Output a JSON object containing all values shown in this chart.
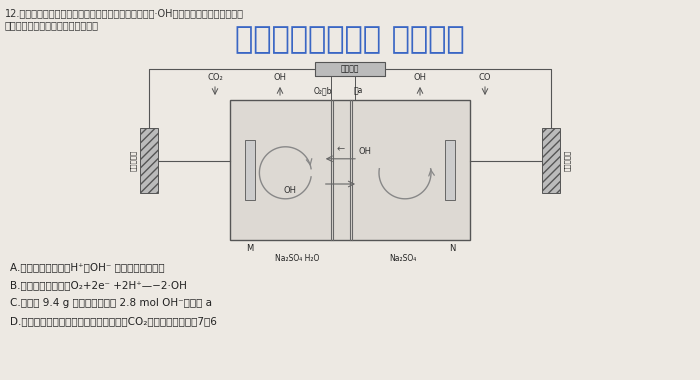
{
  "bg_color": "#ede9e3",
  "question_text_line1": "12.在直流电源作用下，利用双极膜电解池产生自由基（·OH）处理含苯蔽水和含甲醉废",
  "question_text_line2": "水的原理如图。下列说法不正确的是",
  "watermark_text": "微信公众号关注： 趋找答案",
  "option_A": "A.双极膜将水解离为H⁺和OH⁻ 的过程是物理变化",
  "option_B": "B.阴极电极反应式为O₂+2e⁻ +2H⁺—−2·OH",
  "option_C": "C.每处理 9.4 g 苯蔽，理论上有 2.8 mol OH⁻透过膜 a",
  "option_D": "D.通电一段时间后，苯蔽和甲醉转化生成CO₂的物质的量之比为7：6",
  "dc_label": "直流电源",
  "left_top1": "CO₂",
  "left_top2": "OH",
  "right_top1": "OH",
  "right_top2": "CO",
  "o2_memb": "O₂膜b",
  "memb_a": "膜a",
  "left_node": "M",
  "right_node": "N",
  "bottom_left": "Na₂SO₄ H₂O",
  "bottom_right": "Na₂SO₄",
  "left_label": "含苯蔽废水",
  "right_label": "含甲醉废水",
  "oh_arrow_left": "OH",
  "oh_arrow_right": "OH"
}
